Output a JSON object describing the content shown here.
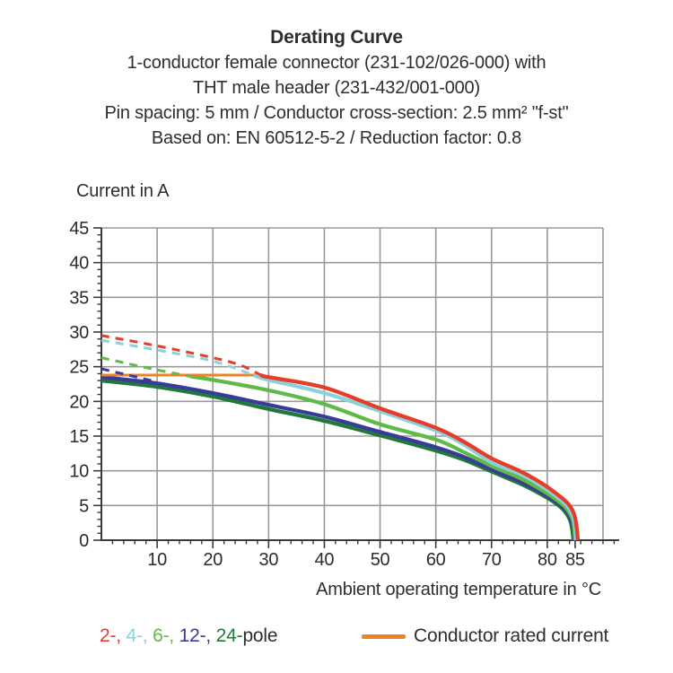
{
  "title": {
    "line1": "Derating Curve",
    "line2": "1-conductor female connector (231-102/026-000) with",
    "line3": "THT male header (231-432/001-000)",
    "line4": "Pin spacing: 5 mm / Conductor cross-section: 2.5 mm² \"f-st\"",
    "line5": "Based on: EN 60512-5-2 / Reduction factor: 0.8"
  },
  "chart_data": {
    "type": "line",
    "title": "Derating Curve",
    "xlabel": "Ambient operating temperature in °C",
    "ylabel": "Current in A",
    "xlim": [
      0,
      90
    ],
    "ylim": [
      0,
      45
    ],
    "x_major_ticks": [
      10,
      20,
      30,
      40,
      50,
      60,
      70,
      80,
      85
    ],
    "x_minor_step": 2,
    "x_grid_step": 10,
    "y_major_step": 5,
    "y_minor_step": 1,
    "grid_on": true,
    "grid_color": "#9a9a9a",
    "axis_color": "#3a3a3a",
    "tick_label_color": "#2b2b2b",
    "series": [
      {
        "name": "24-pole",
        "color": "#1f7a3a",
        "solid": [
          [
            0,
            23.0
          ],
          [
            10,
            22.1
          ],
          [
            20,
            20.7
          ],
          [
            30,
            18.9
          ],
          [
            40,
            17.2
          ],
          [
            50,
            15.1
          ],
          [
            60,
            12.9
          ],
          [
            65,
            11.6
          ],
          [
            70,
            9.9
          ],
          [
            75,
            8.2
          ],
          [
            78,
            7.0
          ],
          [
            81,
            5.6
          ],
          [
            83,
            4.3
          ],
          [
            84.2,
            2.6
          ],
          [
            84.7,
            0
          ]
        ]
      },
      {
        "name": "12-pole",
        "color": "#3a3b99",
        "dashed": [
          [
            0,
            24.7
          ],
          [
            9,
            23.0
          ]
        ],
        "solid": [
          [
            0,
            23.5
          ],
          [
            10,
            22.6
          ],
          [
            20,
            21.2
          ],
          [
            30,
            19.5
          ],
          [
            40,
            17.8
          ],
          [
            50,
            15.6
          ],
          [
            60,
            13.4
          ],
          [
            65,
            12.0
          ],
          [
            70,
            10.2
          ],
          [
            75,
            8.5
          ],
          [
            78,
            7.3
          ],
          [
            81,
            5.9
          ],
          [
            83.2,
            4.4
          ],
          [
            84.4,
            2.7
          ],
          [
            84.9,
            0
          ]
        ]
      },
      {
        "name": "6-pole",
        "color": "#5fba48",
        "dashed": [
          [
            0,
            26.3
          ],
          [
            9,
            24.7
          ],
          [
            16,
            23.6
          ]
        ],
        "solid": [
          [
            16,
            23.6
          ],
          [
            20,
            23.1
          ],
          [
            30,
            21.6
          ],
          [
            40,
            19.6
          ],
          [
            50,
            16.7
          ],
          [
            60,
            14.5
          ],
          [
            65,
            12.7
          ],
          [
            70,
            10.7
          ],
          [
            75,
            9.0
          ],
          [
            78,
            7.7
          ],
          [
            81,
            6.2
          ],
          [
            83.4,
            4.6
          ],
          [
            84.6,
            2.8
          ],
          [
            85,
            0
          ]
        ]
      },
      {
        "name": "4-pole",
        "color": "#8bd1dc",
        "dashed": [
          [
            0,
            28.8
          ],
          [
            10,
            27.4
          ],
          [
            20,
            25.8
          ],
          [
            27.3,
            23.8
          ]
        ],
        "solid": [
          [
            27.3,
            23.8
          ],
          [
            30,
            23.1
          ],
          [
            40,
            21.2
          ],
          [
            50,
            18.6
          ],
          [
            60,
            15.8
          ],
          [
            65,
            13.8
          ],
          [
            70,
            11.2
          ],
          [
            75,
            9.6
          ],
          [
            78,
            8.3
          ],
          [
            81,
            6.7
          ],
          [
            83.6,
            4.9
          ],
          [
            84.8,
            3.0
          ],
          [
            85.2,
            0
          ]
        ]
      },
      {
        "name": "2-pole",
        "color": "#e63c2a",
        "dashed": [
          [
            0,
            29.5
          ],
          [
            10,
            28.0
          ],
          [
            20,
            26.3
          ],
          [
            25,
            25.2
          ],
          [
            28.6,
            23.8
          ]
        ],
        "solid": [
          [
            28.6,
            23.8
          ],
          [
            30,
            23.5
          ],
          [
            40,
            22.0
          ],
          [
            50,
            19.0
          ],
          [
            60,
            16.2
          ],
          [
            65,
            14.2
          ],
          [
            70,
            11.8
          ],
          [
            75,
            10.0
          ],
          [
            78,
            8.7
          ],
          [
            81,
            7.1
          ],
          [
            83.8,
            5.2
          ],
          [
            85,
            3.2
          ],
          [
            85.5,
            0
          ]
        ]
      }
    ],
    "rated_current_line": {
      "name": "Conductor rated current",
      "color": "#ef8222",
      "value": 23.8,
      "points": [
        [
          0,
          23.8
        ],
        [
          28.2,
          23.8
        ]
      ]
    }
  },
  "legend": {
    "poles": [
      {
        "label": "2-",
        "color": "#e63c2a"
      },
      {
        "label": "4-",
        "color": "#8bd1dc"
      },
      {
        "label": "6-",
        "color": "#5fba48"
      },
      {
        "label": "12-",
        "color": "#3a3b99"
      },
      {
        "label": "24-",
        "color": "#1f7a3a"
      }
    ],
    "poles_suffix": "pole",
    "separator": ", ",
    "rated_label": "Conductor rated current",
    "rated_color": "#ef8222"
  }
}
